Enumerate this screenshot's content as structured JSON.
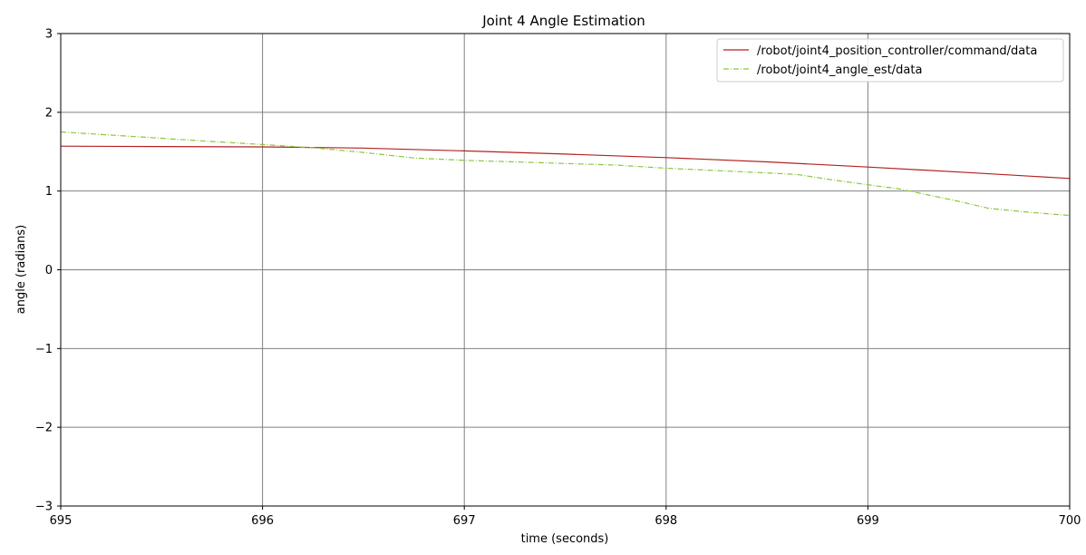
{
  "chart_data": {
    "type": "line",
    "title": "Joint 4 Angle Estimation",
    "xlabel": "time (seconds)",
    "ylabel": "angle (radians)",
    "xlim": [
      695,
      700
    ],
    "ylim": [
      -3,
      3
    ],
    "xticks": [
      695,
      696,
      697,
      698,
      699,
      700
    ],
    "xtick_labels": [
      "695",
      "696",
      "697",
      "698",
      "699",
      "700"
    ],
    "yticks": [
      -3,
      -2,
      -1,
      0,
      1,
      2,
      3
    ],
    "ytick_labels": [
      "−3",
      "−2",
      "−1",
      "0",
      "1",
      "2",
      "3"
    ],
    "grid": true,
    "legend_position": "upper right",
    "series": [
      {
        "name": "/robot/joint4_position_controller/command/data",
        "color": "#b22222",
        "style": "solid",
        "x": [
          695.0,
          695.5,
          696.0,
          696.5,
          697.0,
          697.5,
          698.0,
          698.5,
          699.0,
          699.5,
          700.0
        ],
        "y": [
          1.57,
          1.565,
          1.56,
          1.545,
          1.51,
          1.47,
          1.425,
          1.37,
          1.305,
          1.235,
          1.16
        ]
      },
      {
        "name": "/robot/joint4_angle_est/data",
        "color": "#8cc63f",
        "style": "dashdot",
        "x": [
          695.0,
          695.25,
          695.5,
          695.75,
          696.0,
          696.25,
          696.5,
          696.75,
          697.0,
          697.25,
          697.5,
          697.75,
          698.0,
          698.25,
          698.5,
          698.65,
          698.8,
          699.0,
          699.15,
          699.3,
          699.45,
          699.6,
          699.8,
          700.0
        ],
        "y": [
          1.75,
          1.71,
          1.67,
          1.63,
          1.59,
          1.55,
          1.49,
          1.42,
          1.39,
          1.37,
          1.35,
          1.33,
          1.29,
          1.26,
          1.23,
          1.21,
          1.15,
          1.08,
          1.03,
          0.95,
          0.87,
          0.78,
          0.73,
          0.69
        ]
      }
    ]
  }
}
